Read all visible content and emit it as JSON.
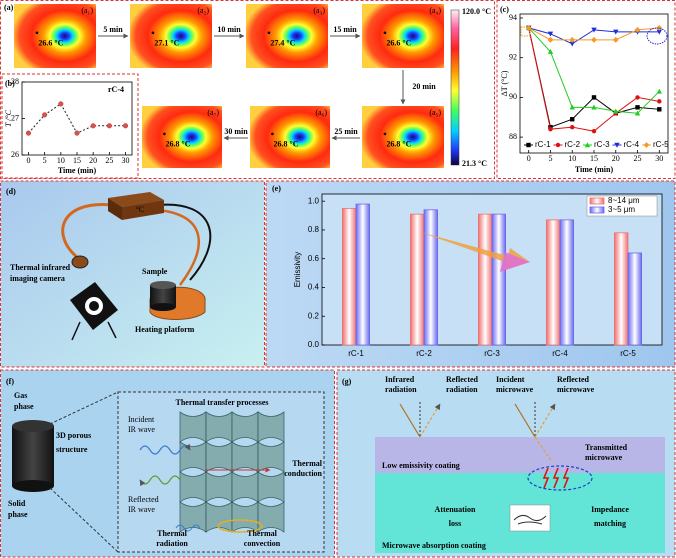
{
  "panels": {
    "a": {
      "label": "(a)",
      "images": [
        {
          "label": "(a₁)",
          "temp": "26.6 °C"
        },
        {
          "label": "(a₂)",
          "temp": "27.1 °C"
        },
        {
          "label": "(a₃)",
          "temp": "27.4 °C"
        },
        {
          "label": "(a₄)",
          "temp": "26.6 °C"
        },
        {
          "label": "(a₅)",
          "temp": "26.8 °C"
        },
        {
          "label": "(a₆)",
          "temp": "26.8 °C"
        },
        {
          "label": "(a₇)",
          "temp": "26.8 °C"
        }
      ],
      "arrows": [
        "5 min",
        "10 min",
        "15 min",
        "20 min",
        "25 min",
        "30 min"
      ],
      "colorbar": {
        "max": "120.0 °C",
        "min": "21.3 °C"
      }
    },
    "d": {
      "label": "(d)",
      "heater": "°C",
      "camera": [
        "Thermal infrared",
        "imaging camera"
      ],
      "sample": "Sample",
      "platform": "Heating platform"
    },
    "f": {
      "label": "(f)",
      "gas": [
        "Gas",
        "phase"
      ],
      "solid": [
        "Solid",
        "phase"
      ],
      "structure": [
        "3D porous",
        "structure"
      ],
      "inset_title": "Thermal transfer processes",
      "incident": [
        "Incident",
        "IR wave"
      ],
      "reflected": [
        "Reflected",
        "IR wave"
      ],
      "conduction": [
        "Thermal",
        "conduction"
      ],
      "radiation": [
        "Thermal",
        "radiation"
      ],
      "convection": [
        "Thermal",
        "convection"
      ]
    },
    "g": {
      "label": "(g)",
      "ir_in": [
        "Infrared",
        "radiation"
      ],
      "ir_out": [
        "Reflected",
        "radiation"
      ],
      "mw_in": [
        "Incident",
        "microwave"
      ],
      "mw_out": [
        "Reflected",
        "microwave"
      ],
      "mw_trans": [
        "Transmitted",
        "microwave"
      ],
      "top_layer": "Low emissivity coating",
      "loss": [
        "Attenuation",
        "loss"
      ],
      "matching": [
        "Impedance",
        "matching"
      ],
      "bottom_layer": "Microwave absorption coating"
    }
  },
  "chart_data": [
    {
      "type": "line",
      "label": "(b)",
      "annotation": "rC-4",
      "xlabel": "Time (min)",
      "ylabel": "T /°C",
      "x": [
        0,
        5,
        10,
        15,
        20,
        25,
        30
      ],
      "values": [
        26.6,
        27.1,
        27.4,
        26.6,
        26.8,
        26.8,
        26.8
      ],
      "color": "#e05050",
      "line_color": "#222",
      "line_style": "dashed",
      "xlim": [
        -2,
        32
      ],
      "xticks": [
        0,
        5,
        10,
        15,
        20,
        25,
        30
      ],
      "ylim": [
        26,
        28
      ],
      "yticks": [
        26,
        27,
        28
      ]
    },
    {
      "type": "line",
      "label": "(c)",
      "xlabel": "Time (min)",
      "ylabel": "ΔT (°C)",
      "x": [
        0,
        5,
        10,
        15,
        20,
        25,
        30
      ],
      "series": [
        {
          "name": "rC-1",
          "color": "#000000",
          "values": [
            93.5,
            88.5,
            88.9,
            90.0,
            89.2,
            89.5,
            89.4
          ]
        },
        {
          "name": "rC-2",
          "color": "#e01010",
          "values": [
            93.5,
            88.4,
            88.5,
            88.3,
            89.2,
            90.0,
            89.8
          ]
        },
        {
          "name": "rC-3",
          "color": "#22cc22",
          "values": [
            93.5,
            92.3,
            89.5,
            89.5,
            89.3,
            89.2,
            90.3
          ]
        },
        {
          "name": "rC-4",
          "color": "#1f2fd8",
          "values": [
            93.5,
            93.2,
            92.7,
            93.4,
            93.3,
            93.3,
            93.3
          ]
        },
        {
          "name": "rC-5",
          "color": "#f59a23",
          "values": [
            93.5,
            92.9,
            92.9,
            92.9,
            92.9,
            93.4,
            93.5
          ]
        }
      ],
      "xlim": [
        -2,
        32
      ],
      "xticks": [
        0,
        5,
        10,
        15,
        20,
        25,
        30
      ],
      "ylim": [
        87.2,
        94.2
      ],
      "yticks": [
        88,
        90,
        92,
        94
      ]
    },
    {
      "type": "bar",
      "label": "(e)",
      "ylabel": "Emissivity",
      "categories": [
        "rC-1",
        "rC-2",
        "rC-3",
        "rC-4",
        "rC-5"
      ],
      "series": [
        {
          "name": "8~14 μm",
          "color": "#f07070",
          "values": [
            0.95,
            0.91,
            0.91,
            0.87,
            0.78
          ]
        },
        {
          "name": "3~5 μm",
          "color": "#6a6af0",
          "values": [
            0.98,
            0.94,
            0.91,
            0.87,
            0.64
          ]
        }
      ],
      "ylim": [
        0,
        1.05
      ],
      "yticks": [
        {
          "value": 0,
          "label": "0.0"
        },
        0.2,
        0.4,
        0.6,
        0.8,
        {
          "value": 1,
          "label": "1.0"
        }
      ]
    }
  ]
}
